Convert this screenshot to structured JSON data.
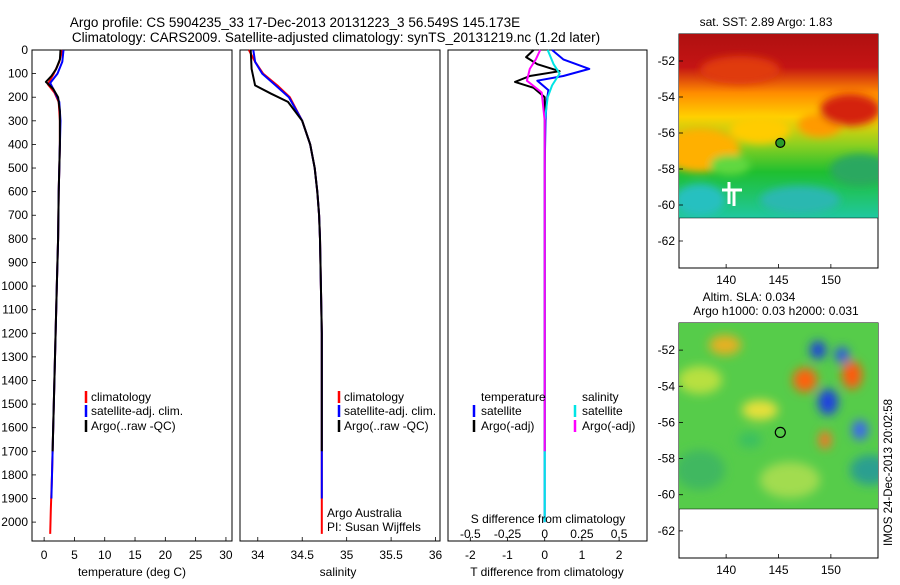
{
  "header": {
    "line1": "Argo profile: CS 5904235_33 17-Dec-2013 20131223_3 56.549S 145.173E",
    "line2": "Climatology: CARS2009. Satellite-adjusted climatology: synTS_20131219.nc (1.2d later)"
  },
  "credit": "Argo Australia",
  "pi": "PI: Susan Wijffels",
  "stamp": "IMOS 24-Dec-2013 20:02:58",
  "colors": {
    "climatology": "#ff0000",
    "satellite": "#0000ff",
    "argo": "#000000",
    "sal_satellite": "#00e5e5",
    "sal_argo": "#ff00ff"
  },
  "chart_data": [
    {
      "type": "line",
      "xlabel": "temperature (deg C)",
      "ylabel": "",
      "xlim": [
        -2,
        31
      ],
      "ylim": [
        2080,
        0
      ],
      "xticks": [
        0,
        5,
        10,
        15,
        20,
        25,
        30
      ],
      "xtick_labels": [
        "0",
        "5",
        "10",
        "15",
        "20",
        "25",
        "30"
      ],
      "yticks": [
        0,
        100,
        200,
        300,
        400,
        500,
        600,
        700,
        800,
        900,
        1000,
        1100,
        1200,
        1300,
        1400,
        1500,
        1600,
        1700,
        1800,
        1900,
        2000
      ],
      "ytick_labels": [
        "0",
        "100",
        "200",
        "300",
        "400",
        "500",
        "600",
        "700",
        "800",
        "900",
        "1000",
        "1100",
        "1200",
        "1300",
        "1400",
        "1500",
        "1600",
        "1700",
        "1800",
        "1900",
        "2000"
      ],
      "legend": [
        "climatology",
        "satellite-adj. clim.",
        "Argo(..raw -QC)"
      ],
      "series": [
        {
          "name": "climatology",
          "color": "#ff0000",
          "points": [
            [
              3.0,
              0
            ],
            [
              2.5,
              50
            ],
            [
              1.6,
              100
            ],
            [
              0.6,
              145
            ],
            [
              1.7,
              180
            ],
            [
              2.4,
              220
            ],
            [
              2.6,
              300
            ],
            [
              2.6,
              400
            ],
            [
              2.5,
              500
            ],
            [
              2.4,
              600
            ],
            [
              2.3,
              800
            ],
            [
              2.1,
              1000
            ],
            [
              1.9,
              1200
            ],
            [
              1.7,
              1400
            ],
            [
              1.5,
              1600
            ],
            [
              1.3,
              1800
            ],
            [
              1.1,
              1950
            ],
            [
              1.0,
              2050
            ]
          ]
        },
        {
          "name": "satellite-adj. clim.",
          "color": "#0000ff",
          "points": [
            [
              3.2,
              0
            ],
            [
              3.0,
              50
            ],
            [
              2.2,
              100
            ],
            [
              1.0,
              140
            ],
            [
              1.8,
              180
            ],
            [
              2.5,
              220
            ],
            [
              2.7,
              300
            ],
            [
              2.6,
              400
            ],
            [
              2.5,
              500
            ],
            [
              2.4,
              600
            ],
            [
              2.3,
              800
            ],
            [
              2.1,
              1000
            ],
            [
              1.9,
              1200
            ],
            [
              1.7,
              1400
            ],
            [
              1.5,
              1600
            ],
            [
              1.3,
              1800
            ],
            [
              1.2,
              1900
            ]
          ]
        },
        {
          "name": "Argo(..raw -QC)",
          "color": "#000000",
          "points": [
            [
              2.7,
              0
            ],
            [
              2.6,
              40
            ],
            [
              2.0,
              80
            ],
            [
              1.2,
              110
            ],
            [
              0.3,
              135
            ],
            [
              1.5,
              165
            ],
            [
              2.3,
              200
            ],
            [
              2.6,
              260
            ],
            [
              2.6,
              400
            ],
            [
              2.5,
              500
            ],
            [
              2.4,
              600
            ],
            [
              2.3,
              800
            ],
            [
              2.1,
              1000
            ],
            [
              1.9,
              1200
            ],
            [
              1.7,
              1400
            ],
            [
              1.5,
              1600
            ],
            [
              1.4,
              1700
            ]
          ]
        }
      ]
    },
    {
      "type": "line",
      "xlabel": "salinity",
      "ylabel": "",
      "xlim": [
        33.8,
        36.05
      ],
      "ylim": [
        2080,
        0
      ],
      "xticks": [
        34,
        34.5,
        35,
        35.5,
        36
      ],
      "xtick_labels": [
        "34",
        "34.5",
        "35",
        "35.5",
        "36"
      ],
      "yticks": [],
      "ytick_labels": [],
      "legend": [
        "climatology",
        "satellite-adj. clim.",
        "Argo(..raw -QC)"
      ],
      "series": [
        {
          "name": "climatology",
          "color": "#ff0000",
          "points": [
            [
              33.9,
              0
            ],
            [
              33.97,
              50
            ],
            [
              34.06,
              100
            ],
            [
              34.22,
              150
            ],
            [
              34.36,
              200
            ],
            [
              34.5,
              300
            ],
            [
              34.59,
              400
            ],
            [
              34.64,
              500
            ],
            [
              34.67,
              600
            ],
            [
              34.69,
              700
            ],
            [
              34.7,
              800
            ],
            [
              34.71,
              1000
            ],
            [
              34.72,
              1200
            ],
            [
              34.72,
              1500
            ],
            [
              34.72,
              1800
            ],
            [
              34.72,
              2050
            ]
          ]
        },
        {
          "name": "satellite-adj. clim.",
          "color": "#0000ff",
          "points": [
            [
              33.95,
              0
            ],
            [
              33.97,
              50
            ],
            [
              34.05,
              100
            ],
            [
              34.2,
              150
            ],
            [
              34.35,
              200
            ],
            [
              34.5,
              300
            ],
            [
              34.59,
              400
            ],
            [
              34.64,
              500
            ],
            [
              34.67,
              600
            ],
            [
              34.69,
              700
            ],
            [
              34.7,
              800
            ],
            [
              34.71,
              1000
            ],
            [
              34.72,
              1200
            ],
            [
              34.72,
              1500
            ],
            [
              34.72,
              1800
            ],
            [
              34.72,
              1900
            ]
          ]
        },
        {
          "name": "Argo(..raw -QC)",
          "color": "#000000",
          "points": [
            [
              33.92,
              0
            ],
            [
              33.93,
              80
            ],
            [
              33.97,
              150
            ],
            [
              34.15,
              185
            ],
            [
              34.34,
              220
            ],
            [
              34.5,
              300
            ],
            [
              34.59,
              400
            ],
            [
              34.64,
              500
            ],
            [
              34.67,
              600
            ],
            [
              34.69,
              700
            ],
            [
              34.7,
              800
            ],
            [
              34.71,
              1000
            ],
            [
              34.72,
              1200
            ],
            [
              34.72,
              1500
            ],
            [
              34.72,
              1700
            ]
          ]
        }
      ]
    },
    {
      "type": "line",
      "xlabel": "T difference from climatology",
      "ylabel": "",
      "x2label": "S difference from climatology",
      "xlim": [
        -2.6,
        2.75
      ],
      "ylim": [
        2080,
        0
      ],
      "xticks": [
        -2,
        -1,
        0,
        1,
        2
      ],
      "xtick_labels": [
        "-2",
        "-1",
        "0",
        "1",
        "2"
      ],
      "x2lim": [
        -0.65,
        0.6875
      ],
      "x2ticks": [
        -0.5,
        -0.25,
        0,
        0.25,
        0.5
      ],
      "x2tick_labels": [
        "-0.5",
        "-0.25",
        "0",
        "0.25",
        "0.5"
      ],
      "legend": [
        "temperature",
        "satellite",
        "Argo(-adj)",
        "salinity",
        "satellite",
        "Argo(-adj)"
      ],
      "series": [
        {
          "name": "temperature satellite",
          "color": "#0000ff",
          "axis": "T",
          "points": [
            [
              0.2,
              0
            ],
            [
              0.5,
              40
            ],
            [
              1.2,
              80
            ],
            [
              0.5,
              110
            ],
            [
              -0.2,
              130
            ],
            [
              0.1,
              170
            ],
            [
              0.05,
              220
            ],
            [
              0.02,
              300
            ],
            [
              0.0,
              500
            ],
            [
              0.0,
              1000
            ],
            [
              0.0,
              1500
            ],
            [
              0.0,
              2000
            ]
          ]
        },
        {
          "name": "temperature Argo(-adj)",
          "color": "#000000",
          "axis": "T",
          "points": [
            [
              -0.3,
              0
            ],
            [
              -0.5,
              30
            ],
            [
              -0.2,
              60
            ],
            [
              0.4,
              90
            ],
            [
              -0.4,
              110
            ],
            [
              -0.8,
              135
            ],
            [
              -0.3,
              160
            ],
            [
              0.0,
              200
            ],
            [
              0.0,
              300
            ],
            [
              0.0,
              500
            ],
            [
              0.0,
              1000
            ],
            [
              0.0,
              1500
            ],
            [
              0.0,
              1700
            ]
          ]
        },
        {
          "name": "salinity satellite",
          "color": "#00e5e5",
          "axis": "S",
          "points": [
            [
              0.02,
              0
            ],
            [
              0.06,
              60
            ],
            [
              0.1,
              100
            ],
            [
              0.05,
              150
            ],
            [
              0.02,
              200
            ],
            [
              0.0,
              300
            ],
            [
              0.0,
              1000
            ],
            [
              0.0,
              1500
            ],
            [
              0.0,
              2000
            ]
          ]
        },
        {
          "name": "salinity Argo(-adj)",
          "color": "#ff00ff",
          "axis": "S",
          "points": [
            [
              -0.03,
              0
            ],
            [
              -0.06,
              40
            ],
            [
              -0.1,
              80
            ],
            [
              -0.12,
              130
            ],
            [
              -0.02,
              180
            ],
            [
              0.0,
              300
            ],
            [
              0.0,
              1000
            ],
            [
              0.0,
              1500
            ],
            [
              0.0,
              1700
            ]
          ]
        }
      ]
    },
    {
      "type": "heatmap",
      "title": "sat. SST: 2.89 Argo: 1.83",
      "xticks": [
        140,
        145,
        150
      ],
      "xtick_labels": [
        "140",
        "145",
        "150"
      ],
      "yticks": [
        -52,
        -54,
        -56,
        -58,
        -60,
        -62
      ],
      "ytick_labels": [
        "-52",
        "-54",
        "-56",
        "-58",
        "-60",
        "-62"
      ],
      "xlim": [
        135.5,
        154.5
      ],
      "ylim": [
        -63.5,
        -50.5
      ],
      "data_bottom": -60,
      "marker": [
        145.17,
        -56.55
      ]
    },
    {
      "type": "heatmap",
      "title": "Altim. SLA: 0.034",
      "subtitle": "Argo h1000: 0.03 h2000: 0.031",
      "xticks": [
        140,
        145,
        150
      ],
      "xtick_labels": [
        "140",
        "145",
        "150"
      ],
      "yticks": [
        -52,
        -54,
        -56,
        -58,
        -60,
        -62
      ],
      "ytick_labels": [
        "-52",
        "-54",
        "-56",
        "-58",
        "-60",
        "-62"
      ],
      "xlim": [
        135.5,
        154.5
      ],
      "ylim": [
        -63.5,
        -50.5
      ],
      "data_bottom": -60,
      "marker": [
        145.17,
        -56.55
      ]
    }
  ]
}
